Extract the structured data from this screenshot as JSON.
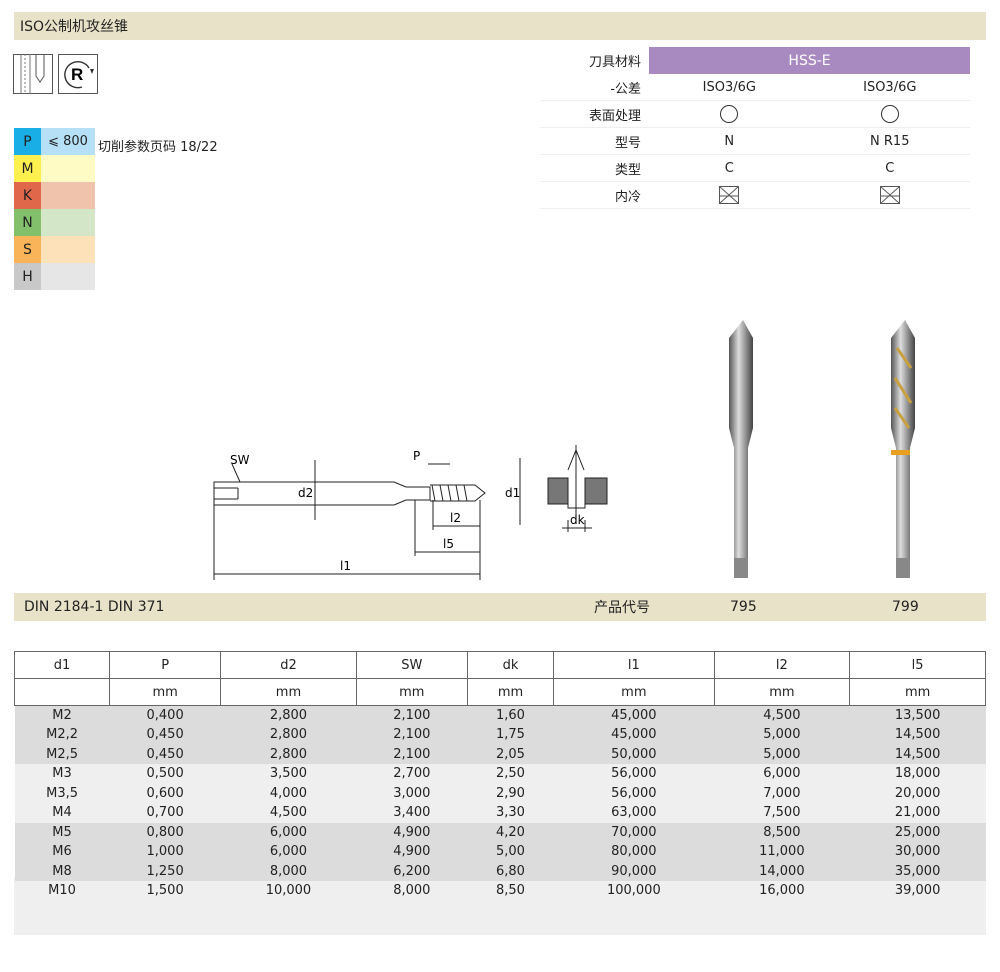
{
  "title": "ISO公制机攻丝锥",
  "icons": [
    "through-hole-tap-icon",
    "right-hand-rotation-icon"
  ],
  "materials": [
    {
      "code": "P",
      "value": "⩽ 800",
      "color": "#1aaee6",
      "bg": "#b5e0f5"
    },
    {
      "code": "M",
      "value": "",
      "color": "#fff050",
      "bg": "#fffbc4"
    },
    {
      "code": "K",
      "value": "",
      "color": "#e0674a",
      "bg": "#f0c3ad"
    },
    {
      "code": "N",
      "value": "",
      "color": "#82c06c",
      "bg": "#d3e6c7"
    },
    {
      "code": "S",
      "value": "",
      "color": "#f9b45a",
      "bg": "#fde1b8"
    },
    {
      "code": "H",
      "value": "",
      "color": "#c8c8c8",
      "bg": "#e6e6e6"
    }
  ],
  "cutting_ref": "切削参数页码 18/22",
  "specs": {
    "material_label": "刀具材料",
    "material": "HSS-E",
    "material_color": "#a88ac0",
    "rows": [
      {
        "label": "-公差",
        "v": [
          "ISO3/6G",
          "ISO3/6G"
        ]
      },
      {
        "label": "表面处理",
        "icon": "bright-finish-circle-icon"
      },
      {
        "label": "型号",
        "v": [
          "N",
          "N R15"
        ]
      },
      {
        "label": "类型",
        "v": [
          "C",
          "C"
        ]
      },
      {
        "label": "内冷",
        "icon": "no-coolant-icon"
      }
    ]
  },
  "diagram_labels": {
    "sw": "SW",
    "p": "P",
    "d2": "d2",
    "d1": "d1",
    "l2": "l2",
    "l5": "l5",
    "l1": "l1",
    "dk": "dk"
  },
  "footer": {
    "standard": "DIN 2184-1  DIN 371",
    "code_label": "产品代号",
    "codes": [
      "795",
      "799"
    ]
  },
  "table": {
    "headers": [
      "d1",
      "P",
      "d2",
      "SW",
      "dk",
      "l1",
      "l2",
      "l5"
    ],
    "units": [
      "",
      "mm",
      "mm",
      "mm",
      "mm",
      "mm",
      "mm",
      "mm"
    ],
    "rows": [
      [
        "M2",
        "0,400",
        "2,800",
        "2,100",
        "1,60",
        "45,000",
        "4,500",
        "13,500"
      ],
      [
        "M2,2",
        "0,450",
        "2,800",
        "2,100",
        "1,75",
        "45,000",
        "5,000",
        "14,500"
      ],
      [
        "M2,5",
        "0,450",
        "2,800",
        "2,100",
        "2,05",
        "50,000",
        "5,000",
        "14,500"
      ],
      [
        "M3",
        "0,500",
        "3,500",
        "2,700",
        "2,50",
        "56,000",
        "6,000",
        "18,000"
      ],
      [
        "M3,5",
        "0,600",
        "4,000",
        "3,000",
        "2,90",
        "56,000",
        "7,000",
        "20,000"
      ],
      [
        "M4",
        "0,700",
        "4,500",
        "3,400",
        "3,30",
        "63,000",
        "7,500",
        "21,000"
      ],
      [
        "M5",
        "0,800",
        "6,000",
        "4,900",
        "4,20",
        "70,000",
        "8,500",
        "25,000"
      ],
      [
        "M6",
        "1,000",
        "6,000",
        "4,900",
        "5,00",
        "80,000",
        "11,000",
        "30,000"
      ],
      [
        "M8",
        "1,250",
        "8,000",
        "6,200",
        "6,80",
        "90,000",
        "14,000",
        "35,000"
      ],
      [
        "M10",
        "1,500",
        "10,000",
        "8,000",
        "8,50",
        "100,000",
        "16,000",
        "39,000"
      ]
    ]
  }
}
